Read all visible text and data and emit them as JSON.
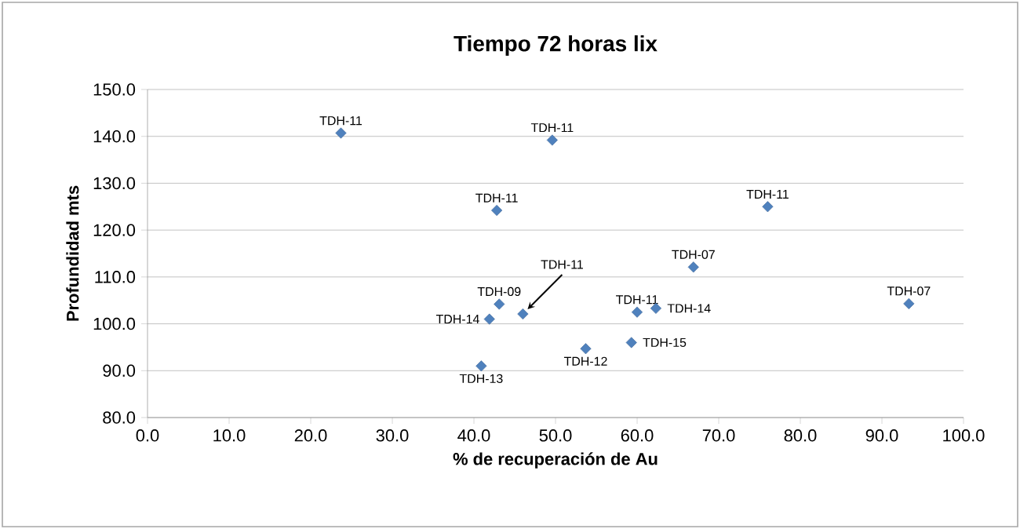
{
  "chart_data": {
    "type": "scatter",
    "title": "Tiempo 72 horas lix",
    "xlabel": "% de recuperación de Au",
    "ylabel": "Profundidad mts",
    "x": [
      23.7,
      49.6,
      42.8,
      43.1,
      41.9,
      46.0,
      40.9,
      76.0,
      66.9,
      60.0,
      62.3,
      93.3,
      53.7,
      59.3
    ],
    "values": [
      140.7,
      139.2,
      124.2,
      104.2,
      101.0,
      102.1,
      91.0,
      125.0,
      112.1,
      102.5,
      103.3,
      104.3,
      94.7,
      96.0
    ],
    "color": "#4f81bd",
    "marker": "diamond",
    "grid": "y",
    "xlim": [
      0,
      100
    ],
    "ylim": [
      80,
      150
    ],
    "xticks": [
      {
        "value": 0,
        "label": "0.0"
      },
      {
        "value": 10,
        "label": "10.0"
      },
      {
        "value": 20,
        "label": "20.0"
      },
      {
        "value": 30,
        "label": "30.0"
      },
      {
        "value": 40,
        "label": "40.0"
      },
      {
        "value": 50,
        "label": "50.0"
      },
      {
        "value": 60,
        "label": "60.0"
      },
      {
        "value": 70,
        "label": "70.0"
      },
      {
        "value": 80,
        "label": "80.0"
      },
      {
        "value": 90,
        "label": "90.0"
      },
      {
        "value": 100,
        "label": "100.0"
      }
    ],
    "yticks": [
      {
        "value": 80,
        "label": "80.0"
      },
      {
        "value": 90,
        "label": "90.0"
      },
      {
        "value": 100,
        "label": "100.0"
      },
      {
        "value": 110,
        "label": "110.0"
      },
      {
        "value": 120,
        "label": "120.0"
      },
      {
        "value": 130,
        "label": "130.0"
      },
      {
        "value": 140,
        "label": "140.0"
      },
      {
        "value": 150,
        "label": "150.0"
      }
    ],
    "annotations": [
      {
        "text": "TDH-11",
        "x": 23.7,
        "y": 140.7
      },
      {
        "text": "TDH-11",
        "x": 49.6,
        "y": 139.2
      },
      {
        "text": "TDH-11",
        "x": 42.8,
        "y": 124.2
      },
      {
        "text": "TDH-09",
        "x": 43.1,
        "y": 104.2
      },
      {
        "text": "TDH-14",
        "x": 41.9,
        "y": 101.0
      },
      {
        "text": "TDH-11",
        "x": 46.0,
        "y": 102.1
      },
      {
        "text": "TDH-13",
        "x": 40.9,
        "y": 91.0
      },
      {
        "text": "TDH-11",
        "x": 76.0,
        "y": 125.0
      },
      {
        "text": "TDH-07",
        "x": 66.9,
        "y": 112.1
      },
      {
        "text": "TDH-11",
        "x": 60.0,
        "y": 102.5
      },
      {
        "text": "TDH-14",
        "x": 62.3,
        "y": 103.3
      },
      {
        "text": "TDH-07",
        "x": 93.3,
        "y": 104.3
      },
      {
        "text": "TDH-12",
        "x": 53.7,
        "y": 94.7
      },
      {
        "text": "TDH-15",
        "x": 59.3,
        "y": 96.0
      }
    ]
  }
}
